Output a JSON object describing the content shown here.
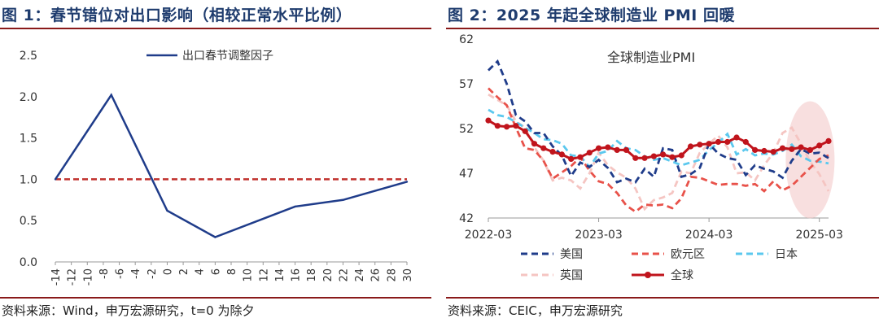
{
  "charts": [
    {
      "title": "图 1：春节错位对出口影响（相较正常水平比例）",
      "source": "资料来源：Wind，申万宏源研究，t=0 为除夕",
      "chart_data": {
        "type": "line",
        "x": [
          -14,
          -12,
          -10,
          -8,
          -6,
          -4,
          -2,
          0,
          2,
          4,
          6,
          8,
          10,
          12,
          14,
          16,
          18,
          20,
          22,
          24,
          26,
          28,
          30
        ],
        "x_tick_labels": [
          "-14",
          "-12",
          "-10",
          "-8",
          "-6",
          "-4",
          "-2",
          "0",
          "2",
          "4",
          "6",
          "8",
          "10",
          "12",
          "14",
          "16",
          "18",
          "20",
          "22",
          "24",
          "26",
          "28",
          "30"
        ],
        "ylim": [
          0,
          2.5
        ],
        "y_ticks": [
          "0.0",
          "0.5",
          "1.0",
          "1.5",
          "2.0",
          "2.5"
        ],
        "series": [
          {
            "name": "出口春节调整因子",
            "color": "#1f3c8a",
            "points": [
              [
                -14,
                1.0
              ],
              [
                -7,
                2.02
              ],
              [
                0,
                0.62
              ],
              [
                6,
                0.3
              ],
              [
                16,
                0.67
              ],
              [
                22,
                0.75
              ],
              [
                30,
                0.97
              ]
            ]
          }
        ],
        "reference_line": {
          "y": 1.0,
          "color": "#c0302c",
          "style": "dashed"
        },
        "legend_position": "top-center"
      }
    },
    {
      "title": "图 2：2025 年起全球制造业 PMI 回暖",
      "source": "资料来源：CEIC，申万宏源研究",
      "chart_data": {
        "type": "line",
        "plot_title": "全球制造业PMI",
        "x_tick_labels": [
          "2022-03",
          "2023-03",
          "2024-03",
          "2025-03"
        ],
        "x_tick_index": [
          0,
          12,
          24,
          36
        ],
        "ylim": [
          42,
          62
        ],
        "y_ticks": [
          "42",
          "47",
          "52",
          "57",
          "62"
        ],
        "series": [
          {
            "name": "美国",
            "color": "#1f3c8a",
            "style": "dashed",
            "values": [
              58.5,
              59.5,
              57,
              53.5,
              52.8,
              51.5,
              51.5,
              50,
              49,
              46.7,
              48.2,
              47.7,
              48.5,
              47.6,
              46,
              46.4,
              46,
              47.5,
              46.6,
              49.8,
              49.6,
              46.6,
              46.9,
              47.6,
              50.3,
              49.2,
              48.7,
              48.5,
              46.8,
              47.9,
              47.5,
              47.2,
              46.5,
              48.4,
              49.7,
              49.2,
              49.3,
              48.7
            ]
          },
          {
            "name": "欧元区",
            "color": "#e8524a",
            "style": "dashed",
            "values": [
              56.5,
              55.5,
              54.6,
              52.1,
              49.8,
              49.6,
              48.4,
              46.4,
              47.1,
              47.8,
              48.8,
              47.3,
              46.1,
              45.8,
              44.8,
              43.4,
              42.7,
              43.5,
              43.4,
              43.5,
              43.1,
              44.2,
              46.6,
              46.5,
              46.1,
              45.7,
              45.8,
              45.8,
              45.6,
              45.8,
              45.0,
              46.1,
              45.1,
              45.6,
              46.6,
              47.6,
              48.6,
              49.0
            ]
          },
          {
            "name": "日本",
            "color": "#5bc8ee",
            "style": "dashed",
            "values": [
              54.1,
              53.5,
              53.3,
              52.7,
              52.1,
              51.5,
              50.8,
              50.7,
              50.3,
              49.0,
              48.9,
              47.7,
              49.2,
              49.5,
              50.6,
              49.8,
              49.6,
              48.9,
              48.5,
              48.7,
              48.3,
              47.9,
              48.2,
              48.5,
              49.6,
              50.4,
              51.4,
              49.1,
              49.7,
              49.0,
              49.2,
              49.1,
              49.5,
              50.2,
              48.9,
              48.4,
              48.3,
              48.1
            ]
          },
          {
            "name": "英国",
            "color": "#f5c5c2",
            "style": "dashed",
            "values": [
              55.8,
              55.2,
              54.6,
              52.8,
              52.1,
              49.9,
              48.4,
              46.2,
              46.5,
              46.2,
              45.3,
              47.0,
              49.3,
              47.9,
              47.1,
              46.5,
              45.3,
              43.0,
              44.0,
              44.3,
              44.8,
              47.2,
              47.0,
              49.3,
              50.3,
              51.2,
              49.9,
              47.0,
              47.1,
              46.2,
              47.9,
              49.3,
              51.5,
              52.1,
              50.3,
              48.3,
              46.9,
              45.0
            ]
          },
          {
            "name": "全球",
            "color": "#c0141c",
            "style": "solid-marker",
            "values": [
              52.9,
              52.3,
              52.2,
              52.3,
              51.7,
              50.3,
              49.8,
              49.4,
              49.1,
              48.6,
              48.8,
              49.3,
              49.8,
              49.9,
              49.6,
              49.6,
              48.7,
              48.7,
              48.9,
              49.1,
              48.8,
              49.0,
              50.0,
              50.2,
              50.3,
              50.5,
              50.5,
              51.0,
              50.5,
              49.6,
              49.5,
              49.4,
              49.8,
              49.7,
              49.9,
              49.6,
              50.1,
              50.6
            ]
          }
        ],
        "highlight": "last-quarter shaded ellipse",
        "legend_position": "bottom"
      }
    }
  ],
  "legend_labels": [
    "美国",
    "欧元区",
    "日本",
    "英国",
    "全球"
  ]
}
